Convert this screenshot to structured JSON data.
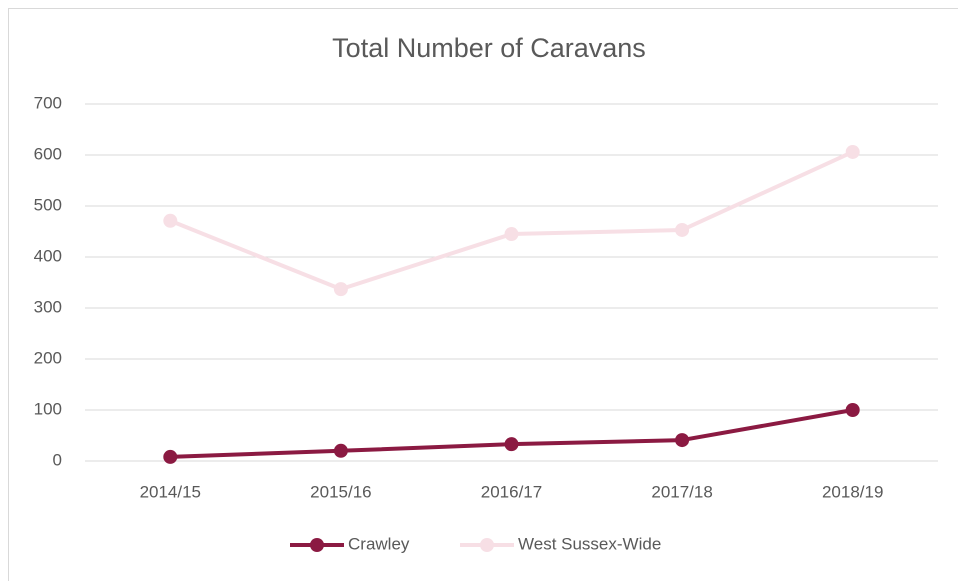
{
  "chart_data": {
    "type": "line",
    "title": "Total Number of Caravans",
    "categories": [
      "2014/15",
      "2015/16",
      "2016/17",
      "2017/18",
      "2018/19"
    ],
    "series": [
      {
        "name": "Crawley",
        "color": "#8b1a42",
        "values": [
          8,
          20,
          33,
          41,
          100
        ]
      },
      {
        "name": "West Sussex-Wide",
        "color": "#f7dfe5",
        "values": [
          471,
          337,
          445,
          453,
          606
        ]
      }
    ],
    "ylim": [
      0,
      700
    ],
    "yticks": [
      0,
      100,
      200,
      300,
      400,
      500,
      600,
      700
    ],
    "grid": true,
    "legend": "bottom"
  }
}
